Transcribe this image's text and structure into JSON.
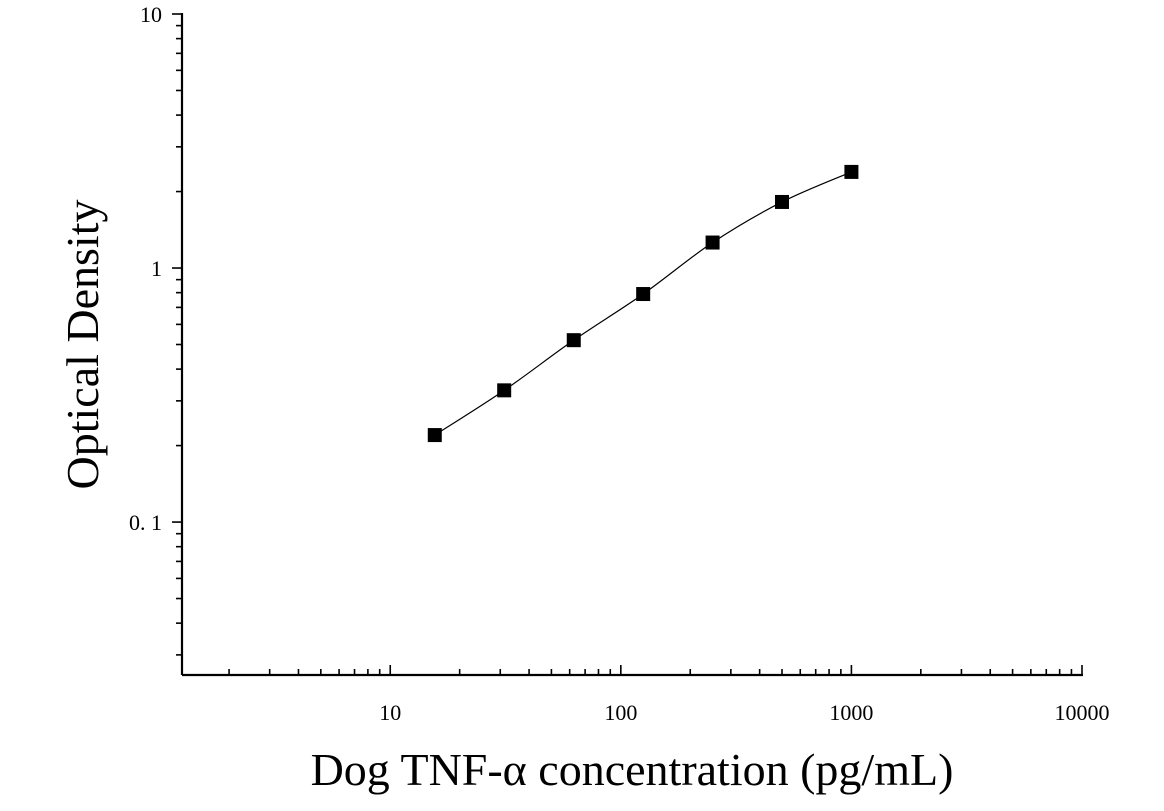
{
  "chart_data": {
    "type": "scatter",
    "title": "",
    "xlabel": "Dog TNF-α concentration (pg/mL)",
    "ylabel": "Optical Density",
    "x_scale": "log",
    "y_scale": "log",
    "xlim": [
      1.25,
      10000
    ],
    "ylim": [
      0.025,
      10
    ],
    "x_ticks": [
      {
        "value": 10,
        "label": "10"
      },
      {
        "value": 100,
        "label": "100"
      },
      {
        "value": 1000,
        "label": "1000"
      },
      {
        "value": 10000,
        "label": "10000"
      }
    ],
    "y_ticks": [
      {
        "value": 0.1,
        "label": "0. 1"
      },
      {
        "value": 1,
        "label": "1"
      },
      {
        "value": 10,
        "label": "10"
      }
    ],
    "grid": false,
    "legend": "none",
    "series": [
      {
        "marker": "square",
        "color": "#000000",
        "fit_line": "smooth",
        "points": [
          {
            "x": 15.6,
            "y": 0.22
          },
          {
            "x": 31.2,
            "y": 0.33
          },
          {
            "x": 62.5,
            "y": 0.52
          },
          {
            "x": 125,
            "y": 0.79
          },
          {
            "x": 250,
            "y": 1.26
          },
          {
            "x": 500,
            "y": 1.82
          },
          {
            "x": 1000,
            "y": 2.39
          }
        ]
      }
    ]
  }
}
